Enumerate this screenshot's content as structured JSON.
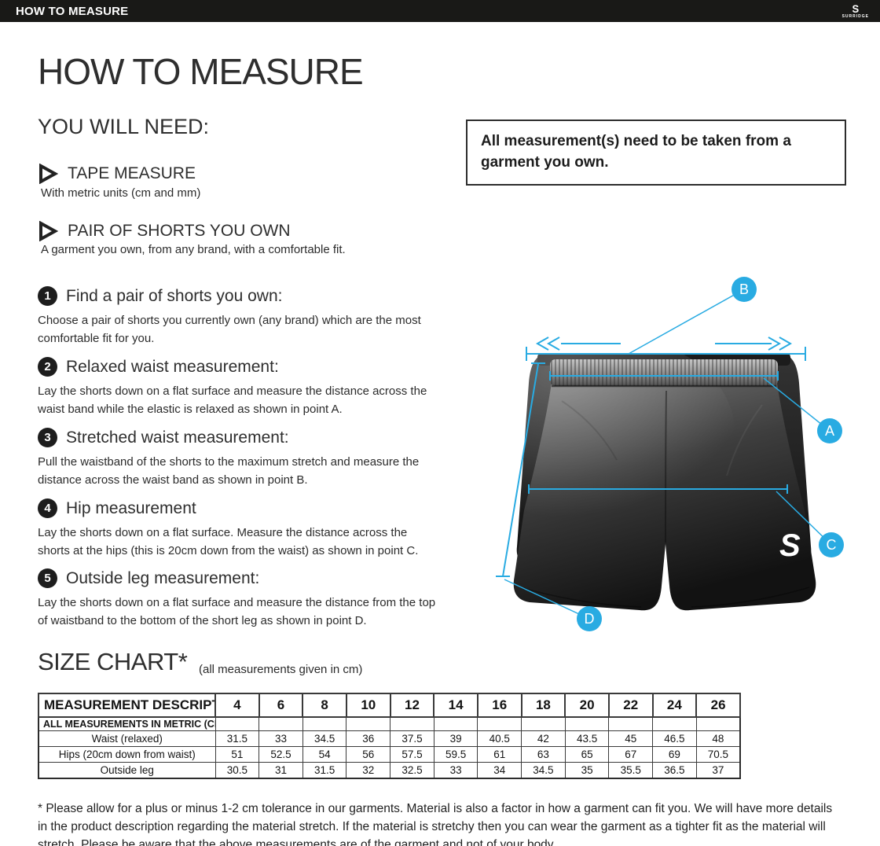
{
  "accent_blue": "#29ABE2",
  "top_bar": {
    "title": "HOW TO MEASURE",
    "brand_glyph": "S",
    "brand": "SURRIDGE"
  },
  "page": {
    "title": "HOW TO MEASURE"
  },
  "you_will_need": {
    "heading": "YOU WILL NEED:",
    "items": [
      {
        "title": "TAPE MEASURE",
        "subtitle": "With metric units (cm and mm)"
      },
      {
        "title": "PAIR OF SHORTS YOU OWN",
        "subtitle": "A garment you own, from any brand, with a comfortable fit."
      }
    ]
  },
  "note_box": {
    "text": "All measurement(s) need to be taken from a garment you own."
  },
  "steps": [
    {
      "number": "1",
      "title": "Find a pair of shorts you own:",
      "body": "Choose a pair of shorts you currently own (any brand) which are the most comfortable fit for you."
    },
    {
      "number": "2",
      "title": "Relaxed waist measurement:",
      "body": "Lay the shorts down on a flat surface and measure the distance across the waist band while the elastic is relaxed as shown in point A."
    },
    {
      "number": "3",
      "title": "Stretched waist measurement:",
      "body": "Pull the waistband of the shorts to the maximum stretch and measure the distance across the waist band as shown in point B."
    },
    {
      "number": "4",
      "title": "Hip measurement",
      "body": "Lay the shorts down on a flat surface. Measure the distance across the shorts at the hips (this is 20cm down from the waist)  as shown in point C."
    },
    {
      "number": "5",
      "title": "Outside leg measurement:",
      "body": "Lay the shorts down on a flat surface and measure the distance from the top of waistband to the bottom of the short leg as shown in point D."
    }
  ],
  "diagram": {
    "marker_a": "A",
    "marker_b": "B",
    "marker_c": "C",
    "marker_d": "D",
    "logo_letter": "S"
  },
  "size_chart": {
    "heading": "SIZE CHART*",
    "subheading": "(all measurements given in cm)",
    "description_header": "MEASUREMENT DESCRIPTION",
    "sizes": [
      "4",
      "6",
      "8",
      "10",
      "12",
      "14",
      "16",
      "18",
      "20",
      "22",
      "24",
      "26"
    ],
    "metric_row_label": "ALL MEASUREMENTS IN METRIC (CM)",
    "empty_cells": [
      "",
      "",
      "",
      "",
      "",
      "",
      "",
      "",
      "",
      "",
      "",
      ""
    ],
    "rows": [
      {
        "label": "Waist (relaxed)",
        "values": [
          "31.5",
          "33",
          "34.5",
          "36",
          "37.5",
          "39",
          "40.5",
          "42",
          "43.5",
          "45",
          "46.5",
          "48"
        ]
      },
      {
        "label": "Hips (20cm down from waist)",
        "values": [
          "51",
          "52.5",
          "54",
          "56",
          "57.5",
          "59.5",
          "61",
          "63",
          "65",
          "67",
          "69",
          "70.5"
        ]
      },
      {
        "label": "Outside leg",
        "values": [
          "30.5",
          "31",
          "31.5",
          "32",
          "32.5",
          "33",
          "34",
          "34.5",
          "35",
          "35.5",
          "36.5",
          "37"
        ]
      }
    ]
  },
  "footnote": "* Please allow for a plus or minus 1-2 cm tolerance in our garments. Material is also a factor in how a garment can fit you. We will have more details in the product description regarding the material stretch.  If the material is stretchy then you can wear the garment as a tighter fit as the material will stretch.  Please be aware that the above measurements are of the garment and not of your body."
}
